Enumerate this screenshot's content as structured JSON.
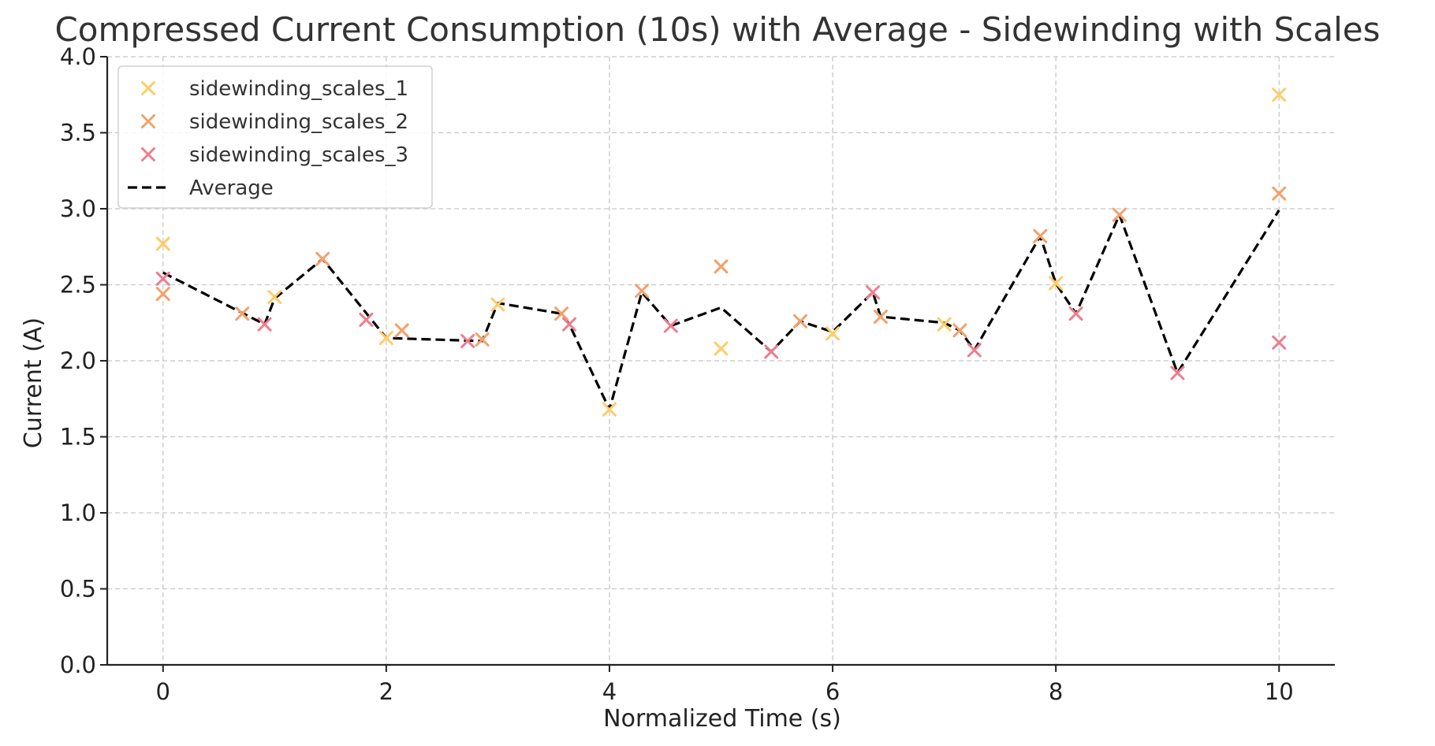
{
  "chart_data": {
    "type": "scatter",
    "title": "Compressed Current Consumption (10s) with Average - Sidewinding with Scales",
    "xlabel": "Normalized Time (s)",
    "ylabel": "Current (A)",
    "xlim": [
      -0.5,
      10.5
    ],
    "ylim": [
      0,
      4.0
    ],
    "xticks": [
      0,
      2,
      4,
      6,
      8,
      10
    ],
    "yticks": [
      0.0,
      0.5,
      1.0,
      1.5,
      2.0,
      2.5,
      3.0,
      3.5,
      4.0
    ],
    "xtick_labels": [
      "0",
      "2",
      "4",
      "6",
      "8",
      "10"
    ],
    "ytick_labels": [
      "0.0",
      "0.5",
      "1.0",
      "1.5",
      "2.0",
      "2.5",
      "3.0",
      "3.5",
      "4.0"
    ],
    "grid": true,
    "legend_position": "top-left",
    "series": [
      {
        "name": "sidewinding_scales_1",
        "color": "#ffcc66",
        "marker": "x",
        "x": [
          0,
          1,
          2,
          3,
          4,
          5,
          6,
          7,
          8,
          10
        ],
        "y": [
          2.77,
          2.42,
          2.15,
          2.37,
          1.68,
          2.08,
          2.18,
          2.24,
          2.51,
          3.75
        ]
      },
      {
        "name": "sidewinding_scales_2",
        "color": "#f4a06a",
        "marker": "x",
        "x": [
          0,
          0.71,
          1.43,
          2.14,
          2.86,
          3.57,
          4.29,
          5.0,
          5.71,
          6.43,
          7.14,
          7.86,
          8.57,
          10
        ],
        "y": [
          2.44,
          2.31,
          2.67,
          2.2,
          2.14,
          2.31,
          2.46,
          2.62,
          2.26,
          2.29,
          2.2,
          2.82,
          2.96,
          3.1
        ]
      },
      {
        "name": "sidewinding_scales_3",
        "color": "#ee7d8e",
        "marker": "x",
        "x": [
          0,
          0.91,
          1.82,
          2.73,
          3.64,
          4.55,
          5.45,
          6.36,
          7.27,
          8.18,
          9.09,
          10
        ],
        "y": [
          2.54,
          2.24,
          2.27,
          2.13,
          2.24,
          2.23,
          2.06,
          2.45,
          2.07,
          2.31,
          1.92,
          2.12
        ]
      },
      {
        "name": "Average",
        "color": "#000000",
        "style": "dashed-line",
        "x": [
          0,
          0.91,
          1.0,
          1.43,
          2.0,
          2.86,
          3.0,
          3.57,
          3.64,
          4.0,
          4.29,
          4.55,
          5.0,
          5.45,
          5.71,
          6.0,
          6.36,
          6.43,
          7.0,
          7.14,
          7.27,
          7.86,
          8.0,
          8.18,
          8.57,
          9.09,
          10
        ],
        "y": [
          2.58,
          2.24,
          2.41,
          2.67,
          2.15,
          2.13,
          2.38,
          2.31,
          2.24,
          1.68,
          2.45,
          2.23,
          2.35,
          2.06,
          2.26,
          2.19,
          2.45,
          2.29,
          2.25,
          2.2,
          2.07,
          2.82,
          2.51,
          2.31,
          2.96,
          1.92,
          2.99
        ]
      }
    ]
  }
}
